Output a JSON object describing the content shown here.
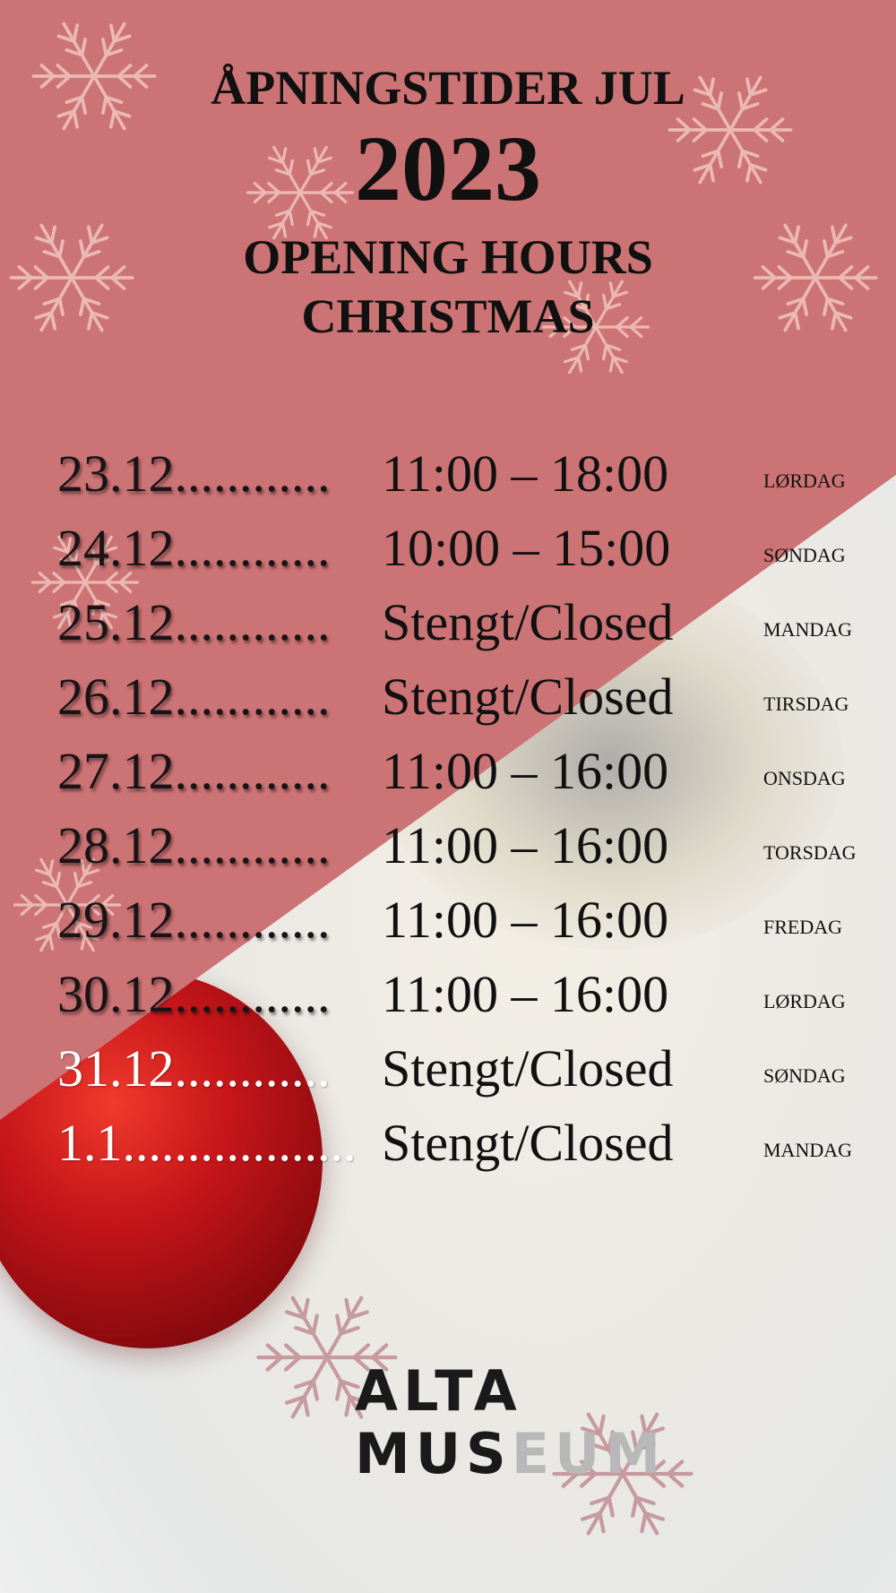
{
  "header": {
    "title_no": "ÅPNINGSTIDER JUL",
    "year": "2023",
    "title_en_line1": "OPENING HOURS",
    "title_en_line2": "CHRISTMAS"
  },
  "schedule": [
    {
      "date": "23.12",
      "leader": "............",
      "hours": "11:00 – 18:00",
      "day": "LØRDAG"
    },
    {
      "date": "24.12",
      "leader": "............",
      "hours": "10:00 – 15:00",
      "day": "SØNDAG"
    },
    {
      "date": "25.12",
      "leader": "............",
      "hours": "Stengt/Closed",
      "day": "MANDAG"
    },
    {
      "date": "26.12",
      "leader": "............",
      "hours": "Stengt/Closed",
      "day": "TIRSDAG"
    },
    {
      "date": "27.12",
      "leader": "............",
      "hours": "11:00 – 16:00",
      "day": "ONSDAG"
    },
    {
      "date": "28.12",
      "leader": "............",
      "hours": "11:00 – 16:00",
      "day": "TORSDAG"
    },
    {
      "date": "29.12",
      "leader": "............",
      "hours": "11:00 – 16:00",
      "day": "FREDAG"
    },
    {
      "date": "30.12",
      "leader": "............",
      "hours": "11:00 – 16:00",
      "day": "LØRDAG"
    },
    {
      "date": "31.12",
      "leader": "............",
      "hours": "Stengt/Closed",
      "day": "SØNDAG"
    },
    {
      "date": "1.1",
      "leader": "..................",
      "hours": "Stengt/Closed",
      "day": "MANDAG"
    }
  ],
  "logo": {
    "line1": "ALTA",
    "line2_dark": "MUS",
    "line2_light": "EUM"
  },
  "colors": {
    "pink": "#cc7375",
    "text": "#111111",
    "ornament": "#c8161a"
  }
}
